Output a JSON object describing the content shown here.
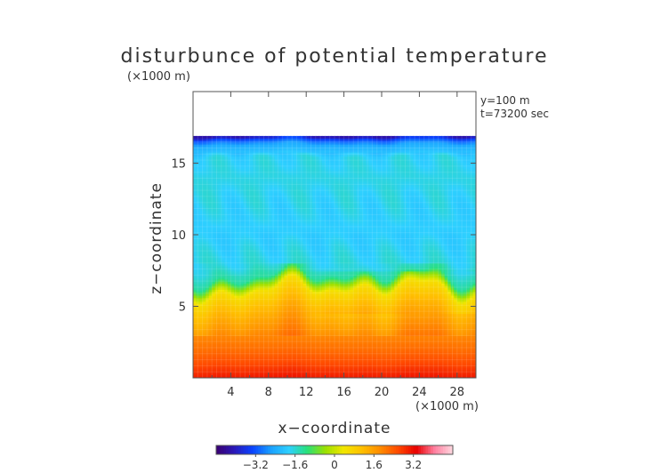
{
  "chart_data": {
    "type": "heatmap",
    "title": "disturbunce of potential temperature",
    "scale_note_y": "(×1000 m)",
    "scale_note_x": "(×1000 m)",
    "xlabel": "x−coordinate",
    "ylabel": "z−coordinate",
    "annotations": [
      "y=100 m",
      "t=73200 sec"
    ],
    "x_ticks": [
      4,
      8,
      12,
      16,
      20,
      24,
      28
    ],
    "x_tick_labels": [
      "4",
      "8",
      "12",
      "16",
      "20",
      "24",
      "28"
    ],
    "y_ticks": [
      5,
      10,
      15
    ],
    "y_tick_labels": [
      "5",
      "10",
      "15"
    ],
    "xlim": [
      0,
      30
    ],
    "ylim": [
      0,
      20
    ],
    "colorbar": {
      "ticks": [
        -3.2,
        -1.6,
        0,
        1.6,
        3.2
      ],
      "tick_labels": [
        "−3.2",
        "−1.6",
        "0",
        "1.6",
        "3.2"
      ],
      "range": [
        -4.8,
        4.8
      ],
      "colors": [
        "#3a0070",
        "#2a18b8",
        "#0a44ff",
        "#1aa0ff",
        "#2ed0ff",
        "#28e07a",
        "#9be000",
        "#f2e600",
        "#ffc000",
        "#ff8c00",
        "#ff4a00",
        "#e80000",
        "#ff80a0",
        "#ffd8e0"
      ]
    },
    "field": {
      "domain_top_z": 16.9,
      "profile_z": [
        0.0,
        1.0,
        2.0,
        3.0,
        4.0,
        5.0,
        6.0,
        6.4,
        7.0,
        8.0,
        10.0,
        12.0,
        14.0,
        15.5,
        16.3,
        16.7,
        16.9
      ],
      "profile_value": [
        3.1,
        2.6,
        2.2,
        1.9,
        1.5,
        1.1,
        0.55,
        -0.2,
        -1.3,
        -1.7,
        -1.9,
        -1.8,
        -1.7,
        -1.8,
        -2.4,
        -3.3,
        -4.2
      ]
    }
  }
}
